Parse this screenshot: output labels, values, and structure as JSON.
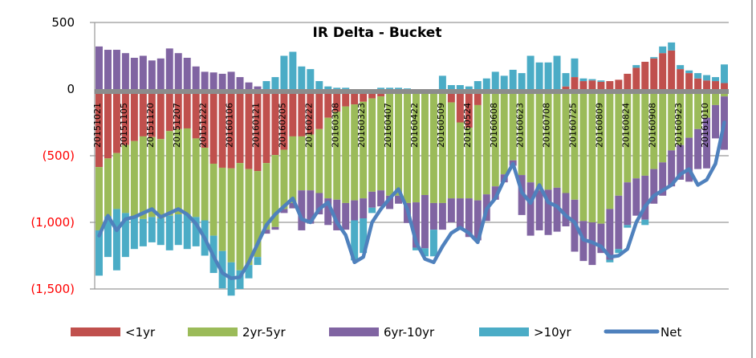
{
  "chart_data": {
    "type": "bar",
    "stacked": true,
    "title": "IR Delta - Bucket",
    "xlabel": "",
    "ylabel": "",
    "ylim": [
      -1500,
      500
    ],
    "yticks": [
      500,
      0,
      -500,
      -1000,
      -1500
    ],
    "ytick_labels": [
      "500",
      "0",
      "(500)",
      "(1,000)",
      "(1,500)"
    ],
    "negative_label_color": "#FF0000",
    "grid": true,
    "legend_position": "bottom",
    "tick_labels": [
      "20151021",
      "20151105",
      "20151120",
      "20151207",
      "20151222",
      "20160106",
      "20160121",
      "20160205",
      "20160222",
      "20160308",
      "20160323",
      "20160407",
      "20160422",
      "20160509",
      "20160524",
      "20160608",
      "20160623",
      "20160708",
      "20160725",
      "20160809",
      "20160824",
      "20160908",
      "20160923",
      "20161010"
    ],
    "series": [
      {
        "name": "<1yr",
        "kind": "bar",
        "color": "#C0504D",
        "values": [
          -585,
          -520,
          -480,
          -420,
          -390,
          -355,
          -360,
          -375,
          -315,
          -300,
          -295,
          -370,
          -440,
          -560,
          -590,
          -595,
          -555,
          -600,
          -615,
          -555,
          -495,
          -455,
          -355,
          -355,
          -340,
          -300,
          -215,
          -170,
          -130,
          -115,
          -95,
          -70,
          -55,
          -20,
          -10,
          -10,
          -10,
          -10,
          -10,
          -5,
          -100,
          -250,
          -290,
          -120,
          -20,
          -10,
          -10,
          -5,
          -5,
          -10,
          0,
          -5,
          0,
          20,
          90,
          60,
          65,
          55,
          60,
          70,
          115,
          160,
          205,
          230,
          270,
          290,
          150,
          120,
          80,
          65,
          60,
          45
        ]
      },
      {
        "name": "2yr-5yr",
        "kind": "bar",
        "color": "#9BBB59",
        "values": [
          -475,
          -435,
          -420,
          -510,
          -570,
          -620,
          -600,
          -595,
          -635,
          -640,
          -645,
          -590,
          -545,
          -540,
          -625,
          -705,
          -805,
          -720,
          -645,
          -500,
          -540,
          -445,
          -500,
          -405,
          -420,
          -480,
          -605,
          -660,
          -725,
          -720,
          -725,
          -700,
          -705,
          -780,
          -790,
          -845,
          -840,
          -785,
          -845,
          -850,
          -720,
          -570,
          -530,
          -715,
          -770,
          -720,
          -630,
          -530,
          -640,
          -690,
          -760,
          -750,
          -740,
          -780,
          -830,
          -990,
          -1000,
          -1010,
          -900,
          -800,
          -700,
          -670,
          -650,
          -600,
          -550,
          -460,
          -420,
          -365,
          -300,
          -215,
          -120,
          -55
        ]
      },
      {
        "name": "6yr-10yr",
        "kind": "bar",
        "color": "#8064A2",
        "values": [
          320,
          295,
          295,
          270,
          235,
          250,
          215,
          230,
          305,
          270,
          235,
          170,
          130,
          125,
          115,
          130,
          90,
          50,
          20,
          -30,
          -20,
          -30,
          -40,
          -300,
          -250,
          -160,
          -200,
          -230,
          -200,
          -150,
          -150,
          -120,
          -120,
          -100,
          -60,
          -150,
          -340,
          -400,
          -200,
          -200,
          -180,
          -230,
          -290,
          -300,
          -200,
          -100,
          -60,
          -40,
          -300,
          -400,
          -300,
          -340,
          -330,
          -250,
          -390,
          -300,
          -320,
          -220,
          -380,
          -400,
          -320,
          -280,
          -330,
          -260,
          -250,
          -270,
          -260,
          -330,
          -300,
          -380,
          -250,
          -400
        ]
      },
      {
        "name": ">10yr",
        "kind": "bar",
        "color": "#4BACC6",
        "values": [
          -340,
          -305,
          -460,
          -330,
          -240,
          -205,
          -190,
          -200,
          -260,
          -230,
          -260,
          -220,
          -265,
          -280,
          -280,
          -250,
          -140,
          -100,
          -60,
          60,
          90,
          250,
          280,
          170,
          150,
          60,
          20,
          10,
          10,
          -300,
          -260,
          -40,
          10,
          10,
          10,
          5,
          -20,
          -60,
          -200,
          100,
          30,
          30,
          20,
          60,
          80,
          130,
          100,
          145,
          120,
          250,
          200,
          200,
          250,
          100,
          140,
          20,
          10,
          10,
          -20,
          -30,
          -20,
          20,
          -40,
          10,
          50,
          60,
          30,
          20,
          40,
          40,
          30,
          140
        ]
      },
      {
        "name": "Net",
        "kind": "line",
        "color": "#4F81BD",
        "values": [
          -1100,
          -950,
          -1060,
          -975,
          -960,
          -930,
          -900,
          -960,
          -930,
          -900,
          -940,
          -1010,
          -1120,
          -1255,
          -1380,
          -1420,
          -1410,
          -1300,
          -1160,
          -1020,
          -940,
          -880,
          -820,
          -975,
          -1000,
          -900,
          -850,
          -1000,
          -1095,
          -1300,
          -1260,
          -1000,
          -900,
          -820,
          -750,
          -900,
          -1150,
          -1275,
          -1300,
          -1180,
          -1080,
          -1040,
          -1080,
          -1150,
          -900,
          -820,
          -680,
          -560,
          -775,
          -855,
          -720,
          -850,
          -880,
          -950,
          -1000,
          -1130,
          -1150,
          -1180,
          -1260,
          -1250,
          -1200,
          -1000,
          -880,
          -800,
          -760,
          -720,
          -640,
          -600,
          -720,
          -680,
          -560,
          -250
        ]
      }
    ]
  }
}
